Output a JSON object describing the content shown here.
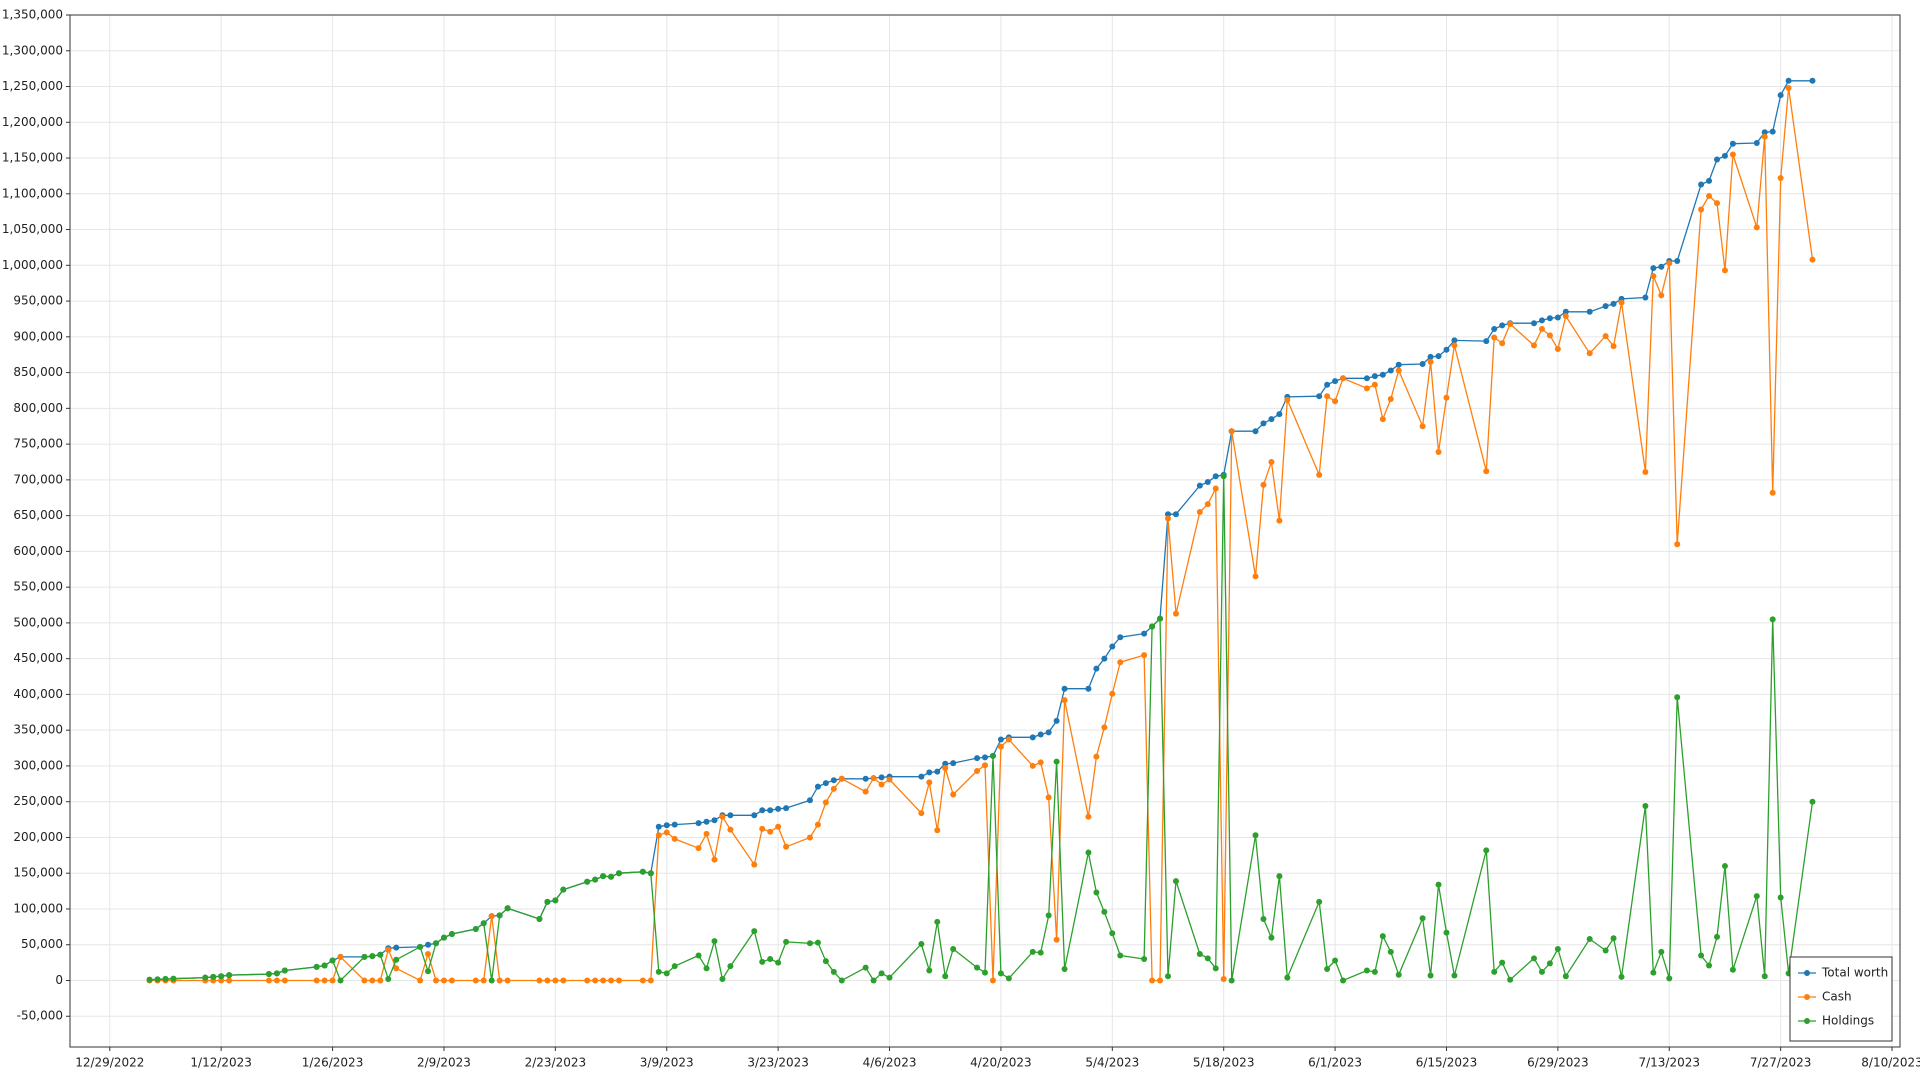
{
  "chart_data": {
    "type": "line",
    "grid": true,
    "legend": "lower right",
    "x": [
      "1/3/2023",
      "1/4/2023",
      "1/5/2023",
      "1/6/2023",
      "1/10/2023",
      "1/11/2023",
      "1/12/2023",
      "1/13/2023",
      "1/18/2023",
      "1/19/2023",
      "1/20/2023",
      "1/24/2023",
      "1/25/2023",
      "1/26/2023",
      "1/27/2023",
      "1/30/2023",
      "1/31/2023",
      "2/1/2023",
      "2/2/2023",
      "2/3/2023",
      "2/6/2023",
      "2/7/2023",
      "2/8/2023",
      "2/9/2023",
      "2/10/2023",
      "2/13/2023",
      "2/14/2023",
      "2/15/2023",
      "2/16/2023",
      "2/17/2023",
      "2/21/2023",
      "2/22/2023",
      "2/23/2023",
      "2/24/2023",
      "2/27/2023",
      "2/28/2023",
      "3/1/2023",
      "3/2/2023",
      "3/3/2023",
      "3/6/2023",
      "3/7/2023",
      "3/8/2023",
      "3/9/2023",
      "3/10/2023",
      "3/13/2023",
      "3/14/2023",
      "3/15/2023",
      "3/16/2023",
      "3/17/2023",
      "3/20/2023",
      "3/21/2023",
      "3/22/2023",
      "3/23/2023",
      "3/24/2023",
      "3/27/2023",
      "3/28/2023",
      "3/29/2023",
      "3/30/2023",
      "3/31/2023",
      "4/3/2023",
      "4/4/2023",
      "4/5/2023",
      "4/6/2023",
      "4/10/2023",
      "4/11/2023",
      "4/12/2023",
      "4/13/2023",
      "4/14/2023",
      "4/17/2023",
      "4/18/2023",
      "4/19/2023",
      "4/20/2023",
      "4/21/2023",
      "4/24/2023",
      "4/25/2023",
      "4/26/2023",
      "4/27/2023",
      "4/28/2023",
      "5/1/2023",
      "5/2/2023",
      "5/3/2023",
      "5/4/2023",
      "5/5/2023",
      "5/8/2023",
      "5/9/2023",
      "5/10/2023",
      "5/11/2023",
      "5/12/2023",
      "5/15/2023",
      "5/16/2023",
      "5/17/2023",
      "5/18/2023",
      "5/19/2023",
      "5/22/2023",
      "5/23/2023",
      "5/24/2023",
      "5/25/2023",
      "5/26/2023",
      "5/30/2023",
      "5/31/2023",
      "6/1/2023",
      "6/2/2023",
      "6/5/2023",
      "6/6/2023",
      "6/7/2023",
      "6/8/2023",
      "6/9/2023",
      "6/12/2023",
      "6/13/2023",
      "6/14/2023",
      "6/15/2023",
      "6/16/2023",
      "6/20/2023",
      "6/21/2023",
      "6/22/2023",
      "6/23/2023",
      "6/26/2023",
      "6/27/2023",
      "6/28/2023",
      "6/29/2023",
      "6/30/2023",
      "7/3/2023",
      "7/5/2023",
      "7/6/2023",
      "7/7/2023",
      "7/10/2023",
      "7/11/2023",
      "7/12/2023",
      "7/13/2023",
      "7/14/2023",
      "7/17/2023",
      "7/18/2023",
      "7/19/2023",
      "7/20/2023",
      "7/21/2023",
      "7/24/2023",
      "7/25/2023",
      "7/26/2023",
      "7/27/2023",
      "7/28/2023",
      "7/31/2023"
    ],
    "series": [
      {
        "name": "Total worth",
        "color": "#1f77b4",
        "values": [
          1000,
          1500,
          2000,
          2500,
          4000,
          5000,
          6000,
          7500,
          9000,
          10000,
          14000,
          19000,
          21000,
          28000,
          33000,
          33000,
          34000,
          36000,
          45000,
          46000,
          47000,
          50000,
          52000,
          60000,
          65000,
          72000,
          80000,
          90000,
          91000,
          101000,
          86000,
          110000,
          112000,
          127000,
          138000,
          141000,
          146000,
          145000,
          150000,
          152000,
          150000,
          215000,
          217000,
          218000,
          220000,
          222000,
          224000,
          231000,
          231000,
          231000,
          238000,
          238000,
          240000,
          241000,
          252000,
          271000,
          276000,
          280000,
          282000,
          282000,
          283000,
          284000,
          285000,
          285000,
          291000,
          292000,
          303000,
          304000,
          311000,
          312000,
          314000,
          337000,
          340000,
          340000,
          344000,
          347000,
          363000,
          408000,
          408000,
          436000,
          450000,
          467000,
          480000,
          485000,
          495000,
          506000,
          652000,
          652000,
          692000,
          697000,
          705000,
          707000,
          768000,
          768000,
          779000,
          785000,
          792000,
          816000,
          817000,
          833000,
          838000,
          842000,
          842000,
          845000,
          847000,
          853000,
          861000,
          862000,
          872000,
          873000,
          882000,
          895000,
          894000,
          911000,
          916000,
          919000,
          919000,
          923000,
          926000,
          927000,
          935000,
          935000,
          943000,
          946000,
          953000,
          955000,
          996000,
          998000,
          1006000,
          1006000,
          1113000,
          1118000,
          1148000,
          1153000,
          1170000,
          1171000,
          1186000,
          1187000,
          1238000,
          1258000,
          1258000
        ]
      },
      {
        "name": "Cash",
        "color": "#ff7f0e",
        "values": [
          0,
          0,
          0,
          0,
          0,
          0,
          0,
          0,
          0,
          0,
          0,
          0,
          0,
          0,
          33000,
          0,
          0,
          0,
          43000,
          17000,
          0,
          37000,
          0,
          0,
          0,
          0,
          0,
          90000,
          0,
          0,
          0,
          0,
          0,
          0,
          0,
          0,
          0,
          0,
          0,
          0,
          0,
          203000,
          207000,
          198000,
          185000,
          205000,
          169000,
          229000,
          211000,
          162000,
          212000,
          208000,
          215000,
          187000,
          200000,
          218000,
          249000,
          268000,
          282000,
          264000,
          283000,
          274000,
          281000,
          234000,
          277000,
          210000,
          297000,
          260000,
          293000,
          301000,
          0,
          327000,
          337000,
          300000,
          305000,
          256000,
          57000,
          392000,
          229000,
          313000,
          354000,
          401000,
          445000,
          455000,
          0,
          0,
          646000,
          513000,
          655000,
          666000,
          688000,
          2000,
          768000,
          565000,
          693000,
          725000,
          643000,
          812000,
          707000,
          817000,
          810000,
          842000,
          828000,
          833000,
          785000,
          813000,
          853000,
          775000,
          865000,
          739000,
          815000,
          888000,
          712000,
          899000,
          891000,
          918000,
          888000,
          911000,
          902000,
          883000,
          929000,
          877000,
          901000,
          887000,
          948000,
          711000,
          985000,
          958000,
          1003000,
          610000,
          1078000,
          1097000,
          1087000,
          993000,
          1155000,
          1053000,
          1180000,
          682000,
          1122000,
          1248000,
          1008000
        ]
      },
      {
        "name": "Holdings",
        "color": "#2ca02c",
        "values": [
          1000,
          1500,
          2000,
          2500,
          4000,
          5000,
          6000,
          7500,
          9000,
          10000,
          14000,
          19000,
          21000,
          28000,
          0,
          33000,
          34000,
          36000,
          2000,
          29000,
          47000,
          13000,
          52000,
          60000,
          65000,
          72000,
          80000,
          0,
          91000,
          101000,
          86000,
          110000,
          112000,
          127000,
          138000,
          141000,
          146000,
          145000,
          150000,
          152000,
          150000,
          12000,
          10000,
          20000,
          35000,
          17000,
          55000,
          2000,
          20000,
          69000,
          26000,
          30000,
          25000,
          54000,
          52000,
          53000,
          27000,
          12000,
          0,
          18000,
          0,
          10000,
          4000,
          51000,
          14000,
          82000,
          6000,
          44000,
          18000,
          11000,
          314000,
          10000,
          3000,
          40000,
          39000,
          91000,
          306000,
          16000,
          179000,
          123000,
          96000,
          66000,
          35000,
          30000,
          495000,
          506000,
          6000,
          139000,
          37000,
          31000,
          17000,
          705000,
          0,
          203000,
          86000,
          60000,
          146000,
          4000,
          110000,
          16000,
          28000,
          0,
          14000,
          12000,
          62000,
          40000,
          8000,
          87000,
          7000,
          134000,
          67000,
          7000,
          182000,
          12000,
          25000,
          1000,
          31000,
          12000,
          24000,
          44000,
          6000,
          58000,
          42000,
          59000,
          5000,
          244000,
          11000,
          40000,
          3000,
          396000,
          35000,
          21000,
          61000,
          160000,
          15000,
          118000,
          6000,
          505000,
          116000,
          10000,
          250000
        ]
      }
    ],
    "xlim": [
      "12/24/2022",
      "8/11/2023"
    ],
    "xticks": [
      "12/29/2022",
      "1/12/2023",
      "1/26/2023",
      "2/9/2023",
      "2/23/2023",
      "3/9/2023",
      "3/23/2023",
      "4/6/2023",
      "4/20/2023",
      "5/4/2023",
      "5/18/2023",
      "6/1/2023",
      "6/15/2023",
      "6/29/2023",
      "7/13/2023",
      "7/27/2023",
      "8/10/2023"
    ],
    "ylim": [
      -93000,
      1350000
    ],
    "yticks": [
      {
        "value": -50000,
        "label": "-50,000"
      },
      0,
      {
        "value": 50000,
        "label": "50,000"
      },
      {
        "value": 100000,
        "label": "100,000"
      },
      {
        "value": 150000,
        "label": "150,000"
      },
      {
        "value": 200000,
        "label": "200,000"
      },
      {
        "value": 250000,
        "label": "250,000"
      },
      {
        "value": 300000,
        "label": "300,000"
      },
      {
        "value": 350000,
        "label": "350,000"
      },
      {
        "value": 400000,
        "label": "400,000"
      },
      {
        "value": 450000,
        "label": "450,000"
      },
      {
        "value": 500000,
        "label": "500,000"
      },
      {
        "value": 550000,
        "label": "550,000"
      },
      {
        "value": 600000,
        "label": "600,000"
      },
      {
        "value": 650000,
        "label": "650,000"
      },
      {
        "value": 700000,
        "label": "700,000"
      },
      {
        "value": 750000,
        "label": "750,000"
      },
      {
        "value": 800000,
        "label": "800,000"
      },
      {
        "value": 850000,
        "label": "850,000"
      },
      {
        "value": 900000,
        "label": "900,000"
      },
      {
        "value": 950000,
        "label": "950,000"
      },
      {
        "value": 1000000,
        "label": "1,000,000"
      },
      {
        "value": 1050000,
        "label": "1,050,000"
      },
      {
        "value": 1100000,
        "label": "1,100,000"
      },
      {
        "value": 1150000,
        "label": "1,150,000"
      },
      {
        "value": 1200000,
        "label": "1,200,000"
      },
      {
        "value": 1250000,
        "label": "1,250,000"
      },
      {
        "value": 1300000,
        "label": "1,300,000"
      },
      {
        "value": 1350000,
        "label": "1,350,000"
      }
    ]
  }
}
